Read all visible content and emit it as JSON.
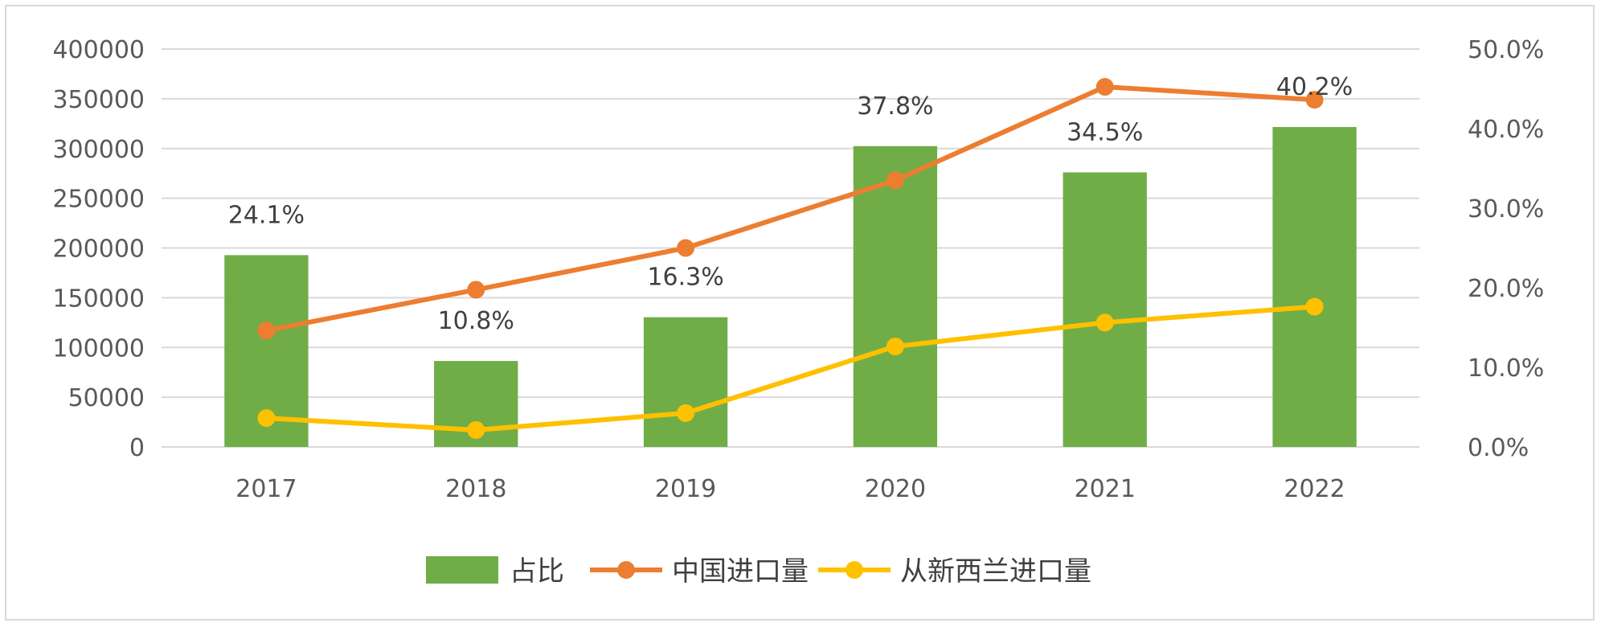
{
  "chart_data": {
    "type": "bar",
    "categories": [
      "2017",
      "2018",
      "2019",
      "2020",
      "2021",
      "2022"
    ],
    "y_left": {
      "ticks": [
        "0",
        "50000",
        "100000",
        "150000",
        "200000",
        "250000",
        "300000",
        "350000",
        "400000"
      ],
      "ylim": [
        0,
        400000
      ]
    },
    "y_right": {
      "ticks": [
        "0.0%",
        "10.0%",
        "20.0%",
        "30.0%",
        "40.0%",
        "50.0%"
      ],
      "ylim": [
        0,
        50
      ]
    },
    "series": [
      {
        "name": "占比",
        "type": "bar",
        "axis": "right",
        "color": "#70ad47",
        "values": [
          24.1,
          10.8,
          16.3,
          37.8,
          34.5,
          40.2
        ],
        "labels": [
          "24.1%",
          "10.8%",
          "16.3%",
          "37.8%",
          "34.5%",
          "40.2%"
        ]
      },
      {
        "name": "中国进口量",
        "type": "line",
        "axis": "left",
        "color": "#ed7d31",
        "values": [
          117000,
          158000,
          200000,
          268000,
          362000,
          349000
        ]
      },
      {
        "name": "从新西兰进口量",
        "type": "line",
        "axis": "left",
        "color": "#ffc000",
        "values": [
          29000,
          17000,
          34000,
          101000,
          125000,
          141000
        ]
      }
    ],
    "grid": true,
    "legend": "bottom"
  }
}
